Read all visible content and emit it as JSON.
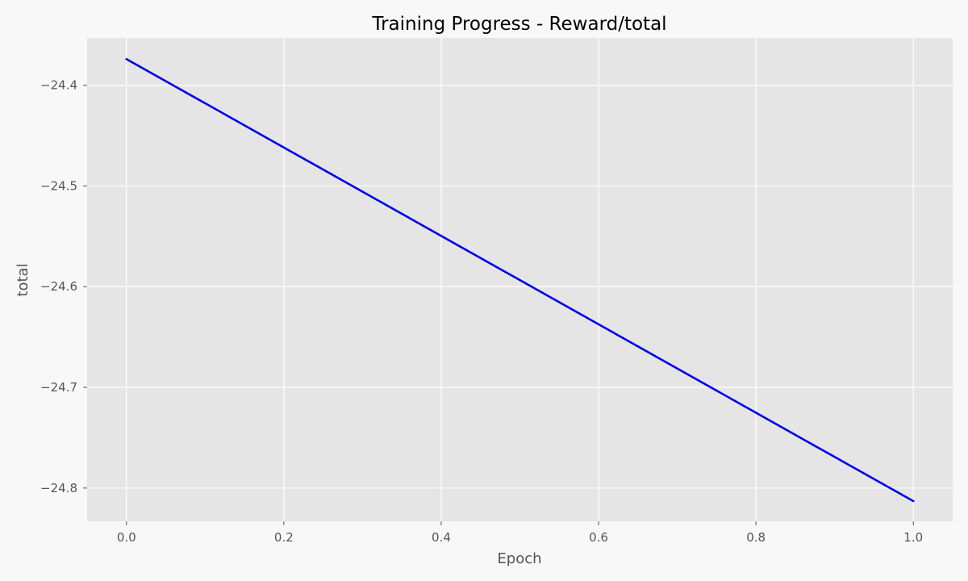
{
  "chart_data": {
    "type": "line",
    "title": "Training Progress - Reward/total",
    "xlabel": "Epoch",
    "ylabel": "total",
    "x": [
      0.0,
      1.0
    ],
    "series": [
      {
        "values": [
          -24.374,
          -24.813
        ],
        "color": "#0000ee"
      }
    ],
    "xlim": [
      -0.05,
      1.05
    ],
    "ylim": [
      -24.833,
      -24.353
    ],
    "xticks": [
      0.0,
      0.2,
      0.4,
      0.6,
      0.8,
      1.0
    ],
    "xtick_labels": [
      "0.0",
      "0.2",
      "0.4",
      "0.6",
      "0.8",
      "1.0"
    ],
    "yticks": [
      -24.4,
      -24.5,
      -24.6,
      -24.7,
      -24.8
    ],
    "ytick_labels": [
      "−24.4",
      "−24.5",
      "−24.6",
      "−24.7",
      "−24.8"
    ],
    "grid": true,
    "legend": false,
    "plot_background": "#e5e5e5",
    "figure_background": "#f8f8f8",
    "grid_color": "#ffffff"
  }
}
